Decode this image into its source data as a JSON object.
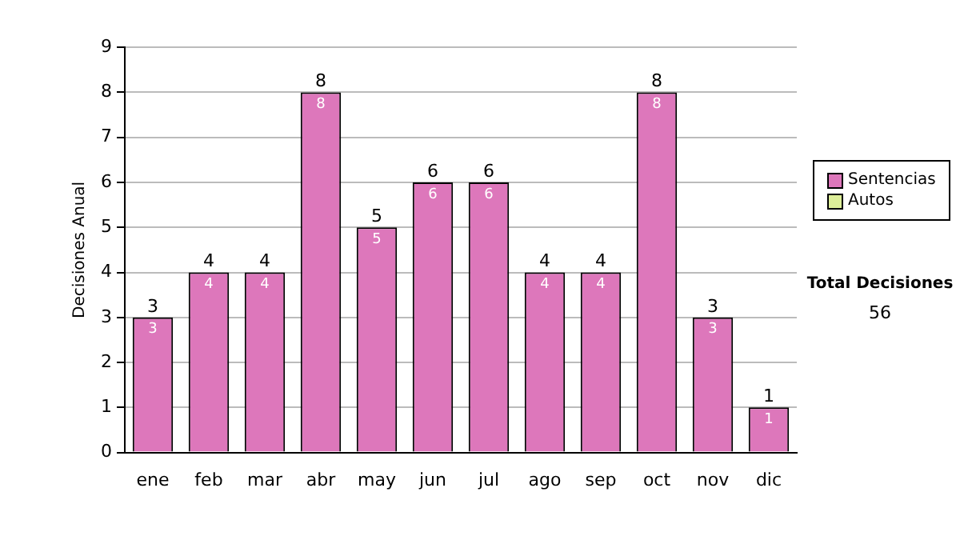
{
  "chart_data": {
    "type": "bar",
    "ylabel": "Decisiones Anual",
    "categories": [
      "ene",
      "feb",
      "mar",
      "abr",
      "may",
      "jun",
      "jul",
      "ago",
      "sep",
      "oct",
      "nov",
      "dic"
    ],
    "series": [
      {
        "name": "Sentencias",
        "color": "#dd77bb",
        "values": [
          3,
          4,
          4,
          8,
          5,
          6,
          6,
          4,
          4,
          8,
          3,
          1
        ]
      },
      {
        "name": "Autos",
        "color": "#ddee99",
        "values": [
          null,
          null,
          null,
          null,
          null,
          null,
          null,
          null,
          null,
          null,
          null,
          null
        ]
      }
    ],
    "stacked": true,
    "data_labels": true,
    "totals": [
      "3",
      "4",
      "4",
      "8",
      "5",
      "6",
      "6",
      "4",
      "4",
      "8",
      "3",
      "1"
    ],
    "ylim": [
      0,
      9
    ],
    "yticks": [
      0,
      1,
      2,
      3,
      4,
      5,
      6,
      7,
      8,
      9
    ],
    "grid": "y",
    "legend": "right",
    "annotations": [
      "Total Decisiones",
      "56"
    ]
  }
}
